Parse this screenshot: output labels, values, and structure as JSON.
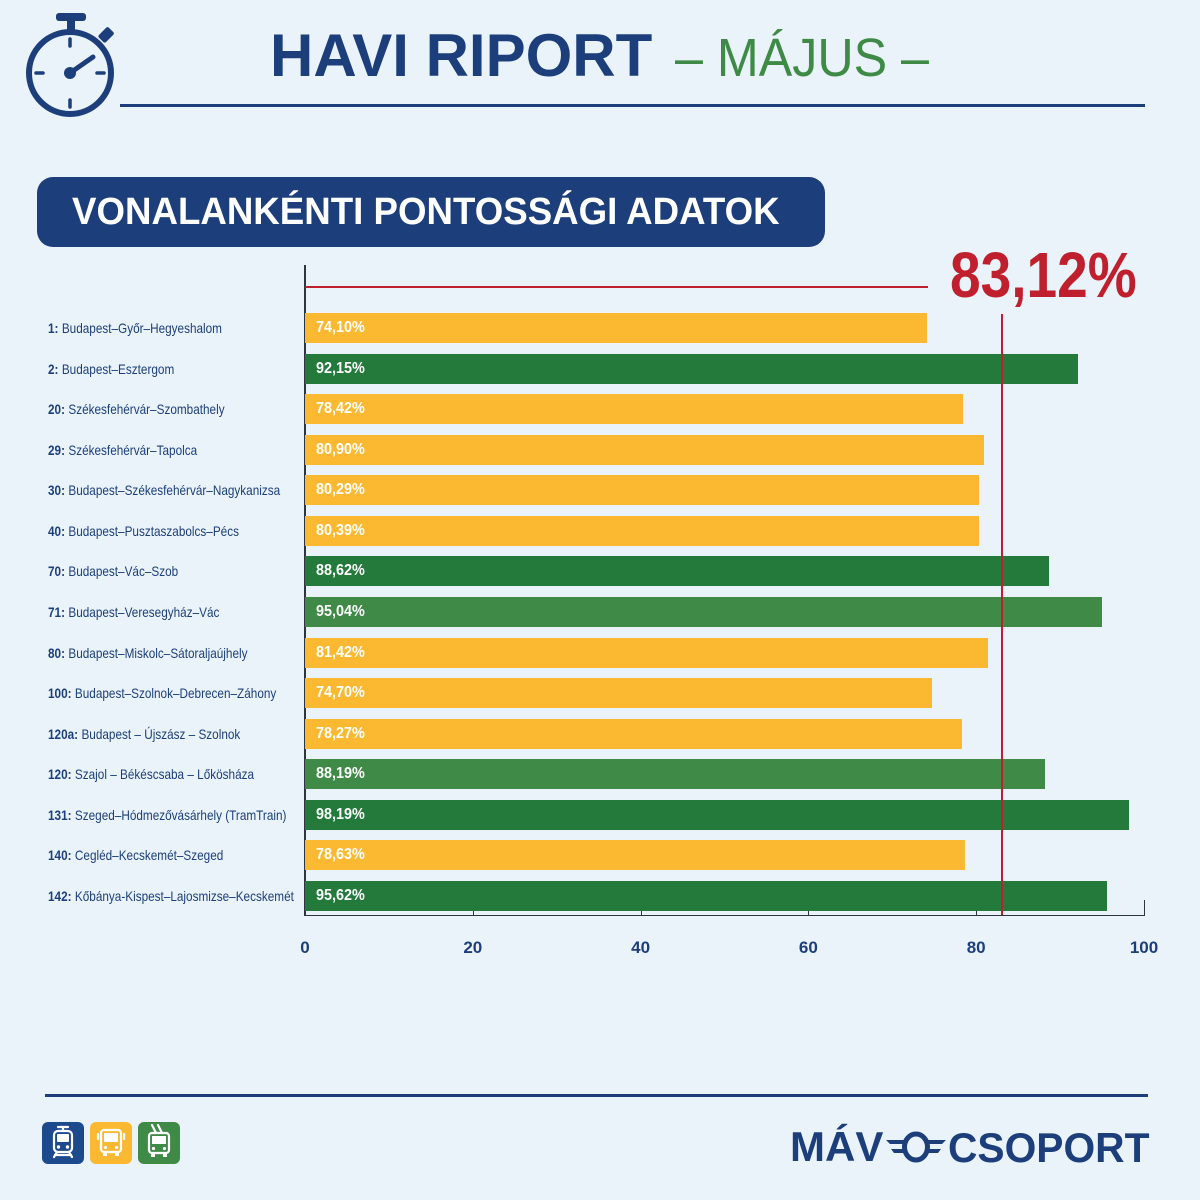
{
  "colors": {
    "background": "#EAF3F9",
    "navy": "#1C3F7C",
    "green": "#3E8A46",
    "red": "#C0202E",
    "yellow": "#FBB931",
    "dark_green": "#237A3B",
    "light_green": "#3F8A46"
  },
  "header": {
    "title": "HAVI RIPORT",
    "subtitle": "– MÁJUS –",
    "icon": "stopwatch-icon"
  },
  "chart_data": {
    "type": "bar",
    "orientation": "horizontal",
    "title": "VONALANKÉNTI PONTOSSÁGI ADATOK",
    "categories": [
      {
        "code": "1:",
        "name": "Budapest–Győr–Hegyeshalom"
      },
      {
        "code": "2:",
        "name": "Budapest–Esztergom"
      },
      {
        "code": "20:",
        "name": "Székesfehérvár–Szombathely"
      },
      {
        "code": "29:",
        "name": "Székesfehérvár–Tapolca"
      },
      {
        "code": "30:",
        "name": "Budapest–Székesfehérvár–Nagykanizsa"
      },
      {
        "code": "40:",
        "name": "Budapest–Pusztaszabolcs–Pécs"
      },
      {
        "code": "70:",
        "name": "Budapest–Vác–Szob"
      },
      {
        "code": "71:",
        "name": "Budapest–Veresegyház–Vác"
      },
      {
        "code": "80:",
        "name": "Budapest–Miskolc–Sátoraljaújhely"
      },
      {
        "code": "100:",
        "name": "Budapest–Szolnok–Debrecen–Záhony"
      },
      {
        "code": "120a:",
        "name": "Budapest – Újszász – Szolnok"
      },
      {
        "code": "120:",
        "name": "Szajol – Békéscsaba – Lőkösháza"
      },
      {
        "code": "131:",
        "name": "Szeged–Hódmezővásárhely (TramTrain)"
      },
      {
        "code": "140:",
        "name": "Cegléd–Kecskemét–Szeged"
      },
      {
        "code": "142:",
        "name": "Kőbánya-Kispest–Lajosmizse–Kecskemét"
      }
    ],
    "values": [
      74.1,
      92.15,
      78.42,
      80.9,
      80.29,
      80.39,
      88.62,
      95.04,
      81.42,
      74.7,
      78.27,
      88.19,
      98.19,
      78.63,
      95.62
    ],
    "value_labels": [
      "74,10%",
      "92,15%",
      "78,42%",
      "80,90%",
      "80,29%",
      "80,39%",
      "88,62%",
      "95,04%",
      "81,42%",
      "74,70%",
      "78,27%",
      "88,19%",
      "98,19%",
      "78,63%",
      "95,62%"
    ],
    "bar_colors": [
      "#FBB931",
      "#237A3B",
      "#FBB931",
      "#FBB931",
      "#FBB931",
      "#FBB931",
      "#237A3B",
      "#3F8A46",
      "#FBB931",
      "#FBB931",
      "#FBB931",
      "#3F8A46",
      "#237A3B",
      "#FBB931",
      "#237A3B"
    ],
    "xlim": [
      0,
      100
    ],
    "xticks": [
      0,
      20,
      40,
      60,
      80,
      100
    ],
    "grid": false,
    "legend": "none",
    "reference_line": {
      "value": 83.12,
      "label": "83,12%",
      "color": "#C0202E"
    }
  },
  "footer": {
    "mode_icons": [
      {
        "icon": "train-icon",
        "color": "#1D4A8C"
      },
      {
        "icon": "bus-icon",
        "color": "#FBB931"
      },
      {
        "icon": "trolleybus-icon",
        "color": "#3E8A46"
      }
    ],
    "logo": {
      "left_text": "MÁV",
      "right_text": "CSOPORT",
      "icon": "mav-wing-logo-icon"
    }
  }
}
